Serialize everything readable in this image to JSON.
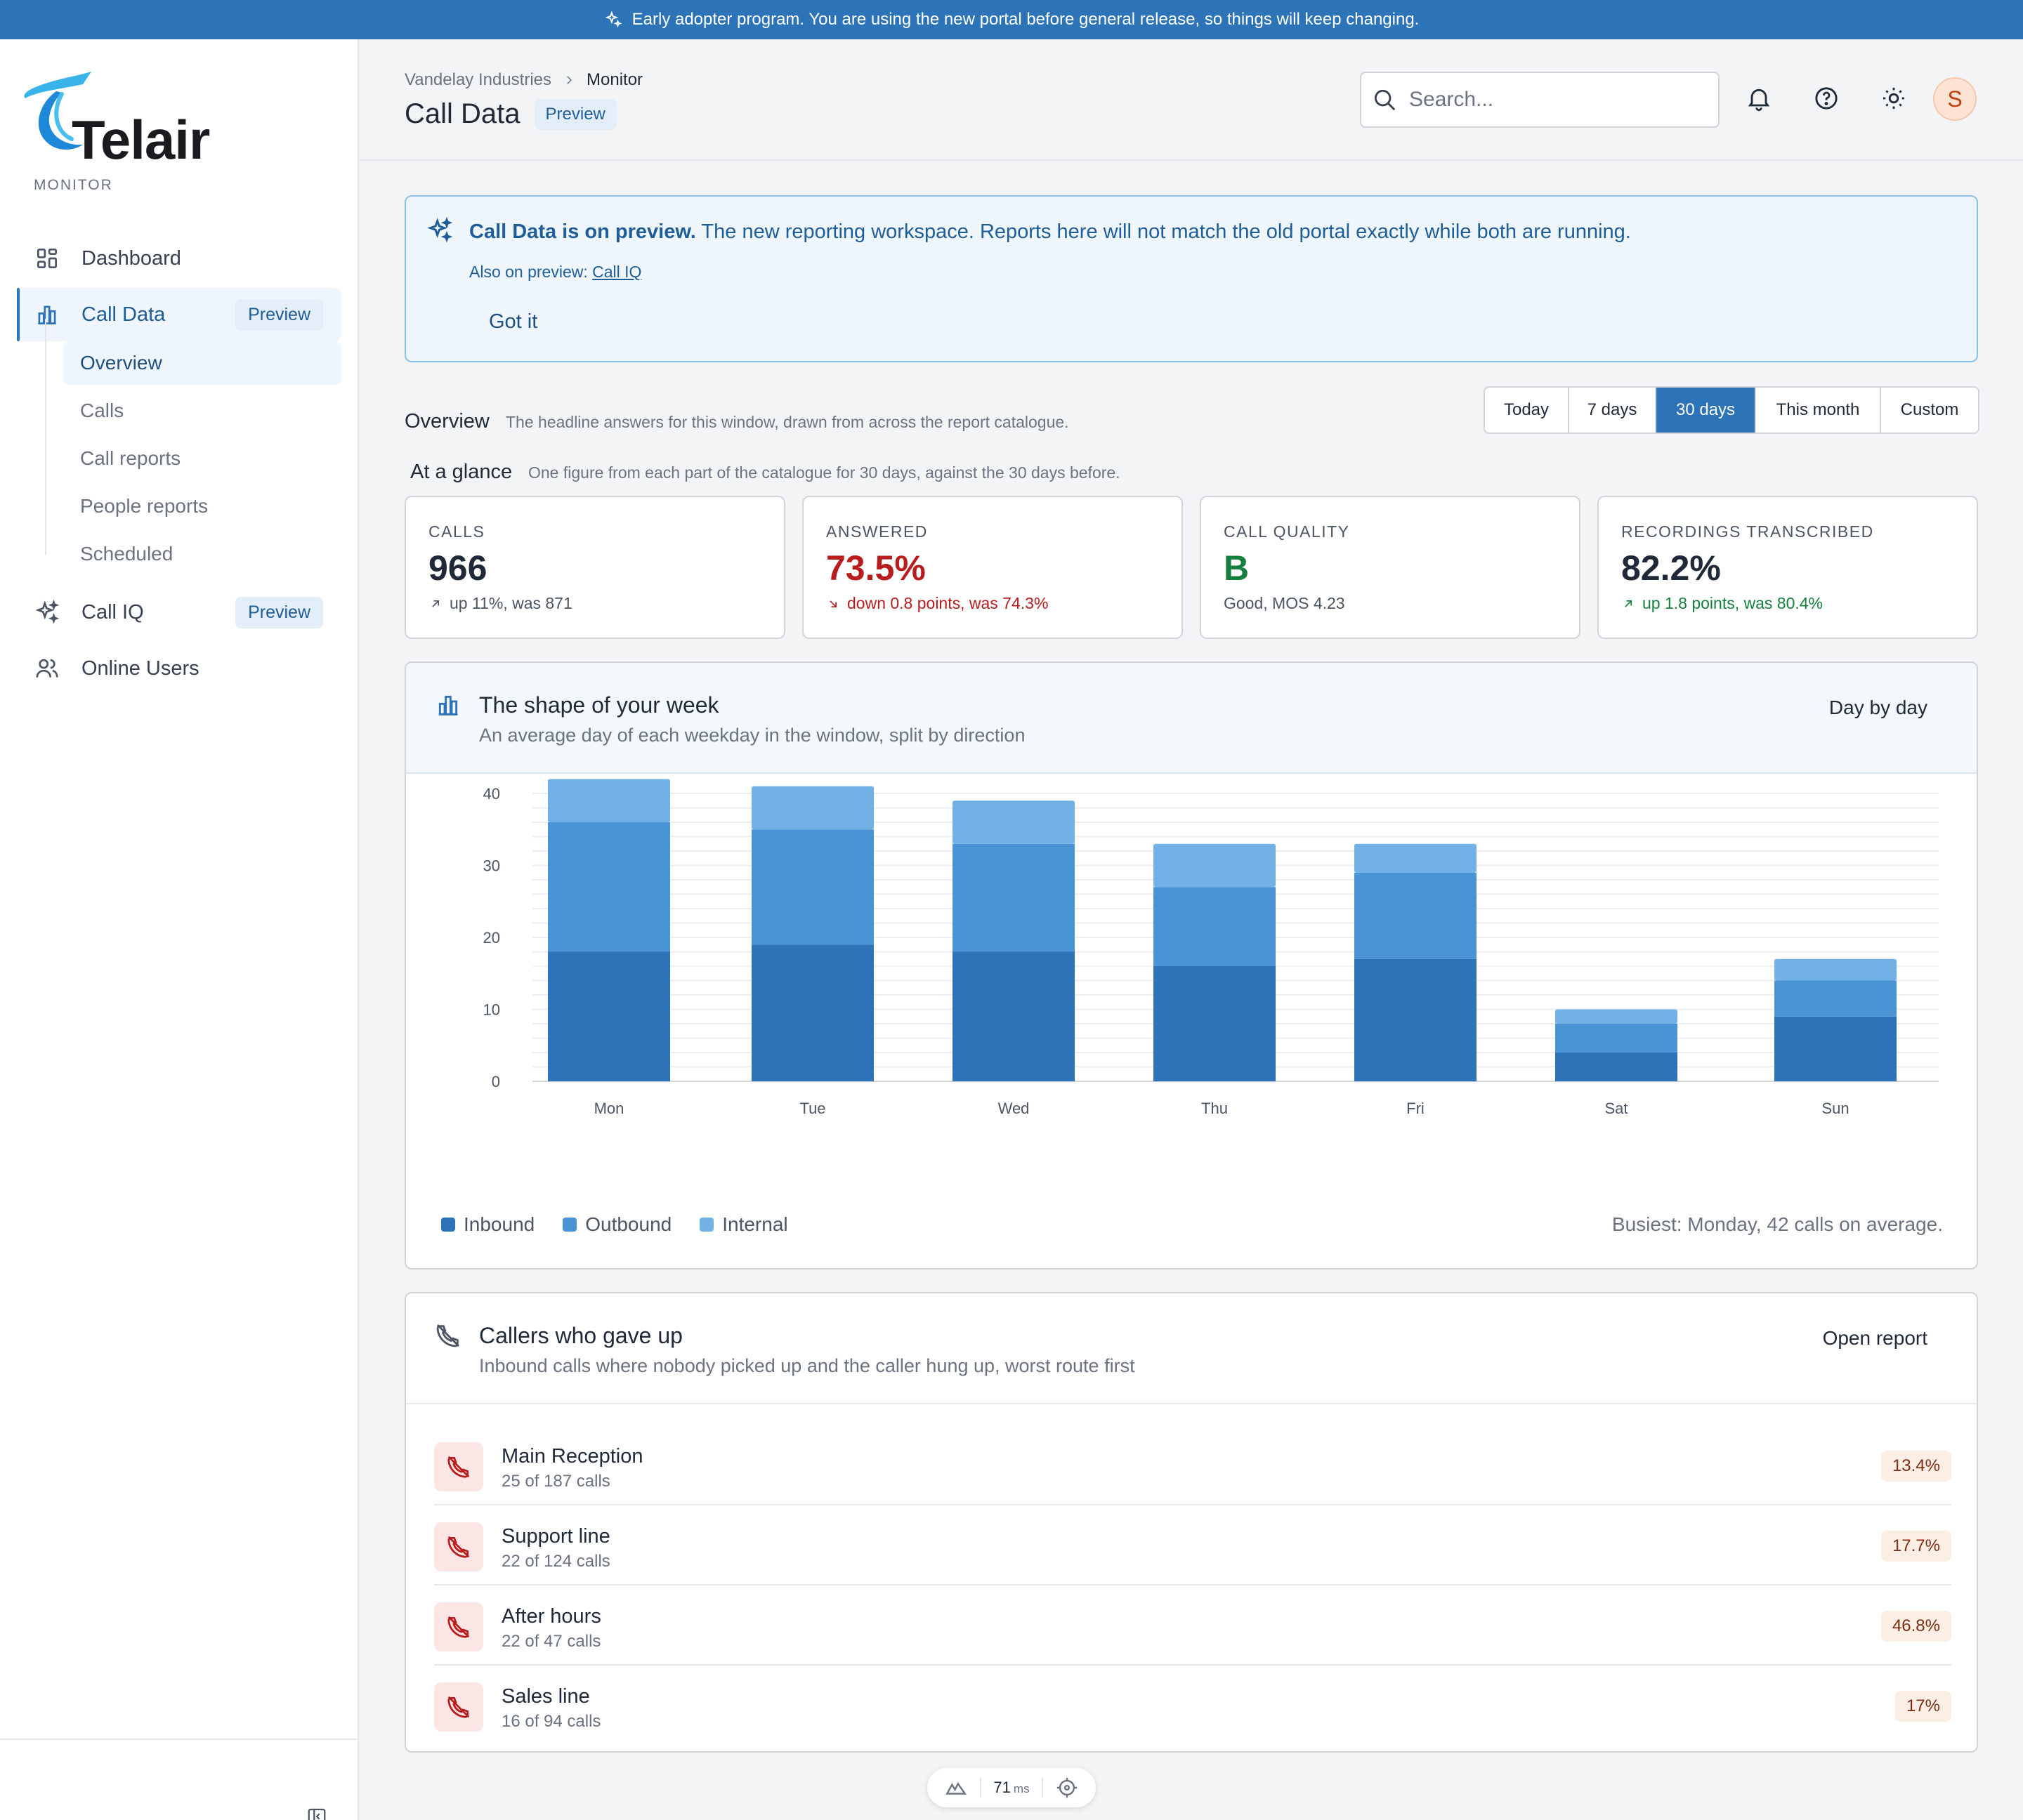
{
  "banner": {
    "text": "Early adopter program. You are using the new portal before general release, so things will keep changing."
  },
  "brand": {
    "name": "Telair"
  },
  "sidebar": {
    "section": "MONITOR",
    "items": [
      {
        "label": "Dashboard",
        "icon": "dashboard-grid-icon"
      },
      {
        "label": "Call Data",
        "icon": "bar-chart-icon",
        "badge": "Preview",
        "active": true
      },
      {
        "label": "Call IQ",
        "icon": "sparkle-icon",
        "badge": "Preview"
      },
      {
        "label": "Online Users",
        "icon": "users-icon"
      }
    ],
    "subitems": [
      "Overview",
      "Calls",
      "Call reports",
      "People reports",
      "Scheduled"
    ]
  },
  "header": {
    "breadcrumb": [
      "Vandelay Industries",
      "Monitor"
    ],
    "title": "Call Data",
    "title_badge": "Preview",
    "search_placeholder": "Search...",
    "avatar_initial": "S"
  },
  "notice": {
    "bold": "Call Data is on preview.",
    "text": "The new reporting workspace. Reports here will not match the old portal exactly while both are running.",
    "also_prefix": "Also on preview:",
    "also_link": "Call IQ",
    "dismiss": "Got it"
  },
  "overview": {
    "title": "Overview",
    "desc": "The headline answers for this window, drawn from across the report catalogue.",
    "ranges": [
      "Today",
      "7 days",
      "30 days",
      "This month",
      "Custom"
    ],
    "selected_range": "30 days",
    "glance_title": "At a glance",
    "glance_desc": "One figure from each part of the catalogue for 30 days, against the 30 days before."
  },
  "kpis": [
    {
      "label": "CALLS",
      "value": "966",
      "sub": "up 11%, was 871",
      "trend": "up",
      "tone": "neutral"
    },
    {
      "label": "ANSWERED",
      "value": "73.5%",
      "sub": "down 0.8 points, was 74.3%",
      "trend": "down",
      "tone": "bad"
    },
    {
      "label": "CALL QUALITY",
      "value": "B",
      "sub": "Good, MOS 4.23",
      "trend": "none",
      "tone": "good"
    },
    {
      "label": "RECORDINGS TRANSCRIBED",
      "value": "82.2%",
      "sub": "up 1.8 points, was 80.4%",
      "trend": "up",
      "tone": "good"
    }
  ],
  "week_card": {
    "title": "The shape of your week",
    "desc": "An average day of each weekday in the window, split by direction",
    "action": "Day by day",
    "busiest": "Busiest: Monday, 42 calls on average."
  },
  "chart_data": {
    "type": "bar",
    "stacked": true,
    "categories": [
      "Mon",
      "Tue",
      "Wed",
      "Thu",
      "Fri",
      "Sat",
      "Sun"
    ],
    "series": [
      {
        "name": "Inbound",
        "color": "#2c73b8",
        "values": [
          18,
          19,
          18,
          16,
          17,
          4,
          9
        ]
      },
      {
        "name": "Outbound",
        "color": "#4a93d4",
        "values": [
          18,
          16,
          15,
          11,
          12,
          4,
          5
        ]
      },
      {
        "name": "Internal",
        "color": "#72b1e6",
        "values": [
          6,
          6,
          6,
          6,
          4,
          2,
          3
        ]
      }
    ],
    "yticks": [
      0,
      10,
      20,
      30,
      40
    ],
    "ylim": [
      0,
      40
    ],
    "grid": true,
    "legend": "bottom-left"
  },
  "gaveup_card": {
    "title": "Callers who gave up",
    "desc": "Inbound calls where nobody picked up and the caller hung up, worst route first",
    "action": "Open report",
    "rows": [
      {
        "name": "Main Reception",
        "sub": "25 of 187 calls",
        "pct": "13.4%"
      },
      {
        "name": "Support line",
        "sub": "22 of 124 calls",
        "pct": "17.7%"
      },
      {
        "name": "After hours",
        "sub": "22 of 47 calls",
        "pct": "46.8%"
      },
      {
        "name": "Sales line",
        "sub": "16 of 94 calls",
        "pct": "17%"
      }
    ]
  },
  "perf": {
    "value": "71",
    "unit": "ms"
  }
}
